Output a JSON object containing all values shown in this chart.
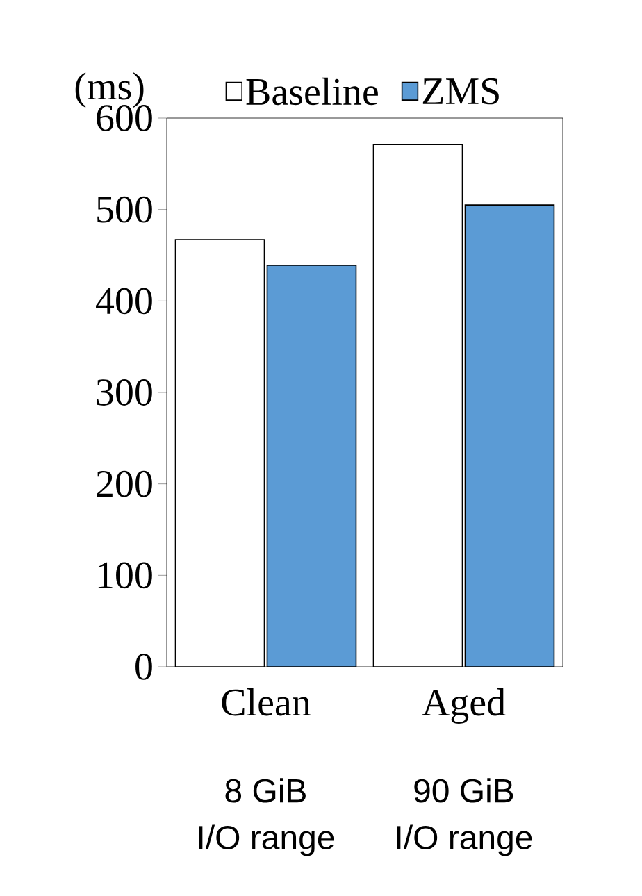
{
  "chart_data": {
    "type": "bar",
    "ylabel": "(ms)",
    "categories": [
      "Clean",
      "Aged"
    ],
    "series": [
      {
        "name": "Baseline",
        "color": "#ffffff",
        "values": [
          467,
          571
        ]
      },
      {
        "name": "ZMS",
        "color": "#5b9bd5",
        "values": [
          439,
          505
        ]
      }
    ],
    "ylim": [
      0,
      600
    ],
    "yticks": [
      0,
      100,
      200,
      300,
      400,
      500,
      600
    ],
    "grid": false,
    "legend": "top",
    "annotations": [
      "8 GiB",
      "I/O range",
      "90 GiB",
      "I/O range"
    ]
  }
}
